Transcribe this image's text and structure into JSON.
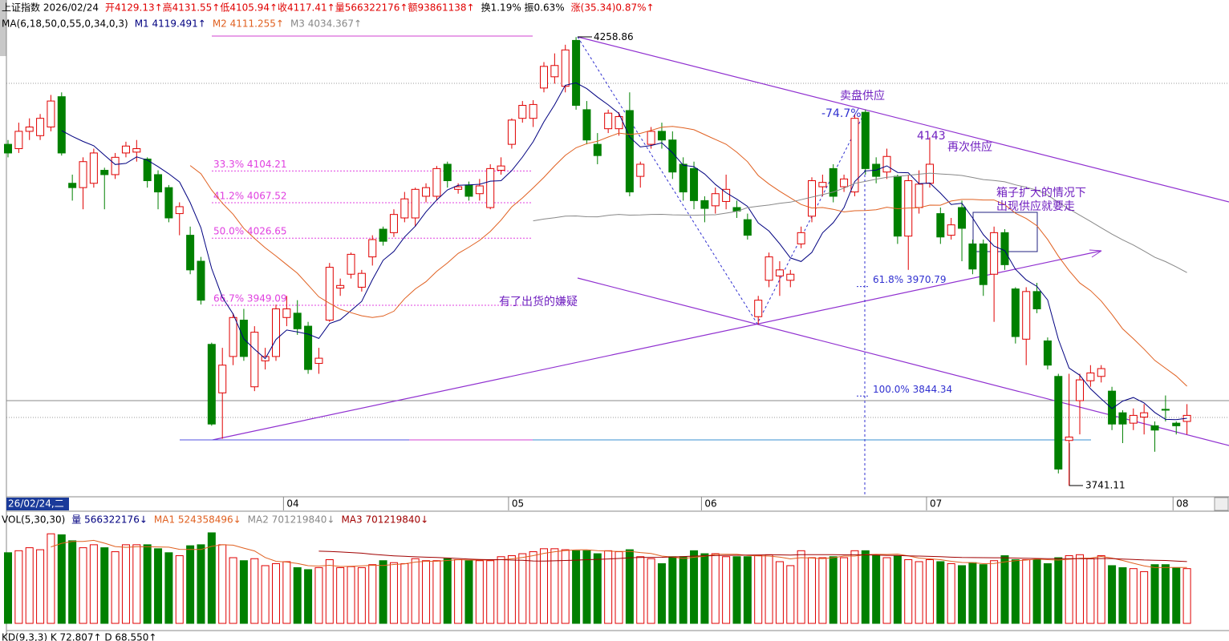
{
  "header": [
    {
      "text": "上证指数 2026/02/24",
      "color": "#000000"
    },
    {
      "text": "开4129.13↑高4131.55↑低4105.94↑收4117.41↑量566322176↑额93861138↑",
      "color": "#e00000"
    },
    {
      "text": "换1.19% 振0.63%",
      "color": "#000000"
    },
    {
      "text": "涨(35.34)0.87%↑",
      "color": "#e00000"
    }
  ],
  "indicator_row": [
    {
      "text": "MA(6,18,50,0,55,0,34,0,3)",
      "color": "#000000"
    },
    {
      "text": "M1 4119.491↑",
      "color": "#000080"
    },
    {
      "text": "M2 4111.255↑",
      "color": "#e06020"
    },
    {
      "text": "M3 4034.367↑",
      "color": "#888888"
    }
  ],
  "volume_row": [
    {
      "text": "VOL(5,30,30)",
      "color": "#000000"
    },
    {
      "text": "量 566322176↓",
      "color": "#000080"
    },
    {
      "text": "MA1 524358496↓",
      "color": "#e06020"
    },
    {
      "text": "MA2 701219840↓",
      "color": "#888888"
    },
    {
      "text": "MA3 701219840↓",
      "color": "#a00000"
    }
  ],
  "kd_row": "KD(9,3,3)  K 72.807↑  D 68.550↑",
  "date_box": "26/02/24,二",
  "chart_data": {
    "type": "candlestick",
    "ylim": [
      3728,
      4285
    ],
    "up_color": "#e00000",
    "down_color": "#008000",
    "ma_lines": [
      {
        "period": 6,
        "color": "#000080"
      },
      {
        "period": 18,
        "color": "#e06020"
      },
      {
        "period": 50,
        "color": "#888888"
      }
    ],
    "x_labels": [
      {
        "index": 26,
        "label": "04"
      },
      {
        "index": 47,
        "label": "05"
      },
      {
        "index": 65,
        "label": "06"
      },
      {
        "index": 86,
        "label": "07"
      },
      {
        "index": 109,
        "label": "08"
      }
    ],
    "candles": [
      [
        4135,
        4140,
        4120,
        4125
      ],
      [
        4130,
        4160,
        4125,
        4150
      ],
      [
        4150,
        4165,
        4140,
        4155
      ],
      [
        4145,
        4170,
        4140,
        4165
      ],
      [
        4155,
        4192,
        4150,
        4185
      ],
      [
        4190,
        4195,
        4122,
        4125
      ],
      [
        4090,
        4100,
        4070,
        4085
      ],
      [
        4085,
        4120,
        4060,
        4115
      ],
      [
        4090,
        4130,
        4085,
        4125
      ],
      [
        4105,
        4108,
        4060,
        4100
      ],
      [
        4100,
        4125,
        4095,
        4120
      ],
      [
        4125,
        4138,
        4120,
        4133
      ],
      [
        4126,
        4140,
        4115,
        4130
      ],
      [
        4118,
        4120,
        4085,
        4093
      ],
      [
        4100,
        4105,
        4060,
        4080
      ],
      [
        4085,
        4088,
        4045,
        4050
      ],
      [
        4055,
        4068,
        4030,
        4063
      ],
      [
        4030,
        4040,
        3985,
        3990
      ],
      [
        4000,
        4005,
        3950,
        3955
      ],
      [
        3904,
        3906,
        3810,
        3812
      ],
      [
        3848,
        3900,
        3795,
        3880
      ],
      [
        3890,
        3940,
        3880,
        3935
      ],
      [
        3932,
        3945,
        3885,
        3890
      ],
      [
        3855,
        3925,
        3850,
        3918
      ],
      [
        3885,
        3900,
        3875,
        3890
      ],
      [
        3890,
        3950,
        3885,
        3945
      ],
      [
        3935,
        3960,
        3925,
        3945
      ],
      [
        3940,
        3955,
        3915,
        3922
      ],
      [
        3925,
        3930,
        3870,
        3875
      ],
      [
        3882,
        3900,
        3870,
        3888
      ],
      [
        3932,
        3998,
        3930,
        3993
      ],
      [
        3969,
        3980,
        3960,
        3972
      ],
      [
        3985,
        4010,
        3980,
        4008
      ],
      [
        3970,
        3990,
        3965,
        3986
      ],
      [
        4005,
        4030,
        3995,
        4025
      ],
      [
        4037,
        4040,
        4018,
        4023
      ],
      [
        4033,
        4060,
        4028,
        4054
      ],
      [
        4050,
        4080,
        4045,
        4072
      ],
      [
        4050,
        4085,
        4040,
        4083
      ],
      [
        4075,
        4090,
        4068,
        4085
      ],
      [
        4075,
        4110,
        4070,
        4107
      ],
      [
        4112,
        4115,
        4085,
        4093
      ],
      [
        4083,
        4090,
        4078,
        4086
      ],
      [
        4088,
        4092,
        4070,
        4075
      ],
      [
        4078,
        4095,
        4070,
        4087
      ],
      [
        4062,
        4112,
        4060,
        4107
      ],
      [
        4105,
        4120,
        4100,
        4110
      ],
      [
        4135,
        4165,
        4130,
        4163
      ],
      [
        4165,
        4185,
        4160,
        4180
      ],
      [
        4165,
        4186,
        4155,
        4181
      ],
      [
        4200,
        4230,
        4195,
        4225
      ],
      [
        4213,
        4240,
        4205,
        4226
      ],
      [
        4202,
        4250,
        4195,
        4244
      ],
      [
        4255,
        4258.86,
        4175,
        4180
      ],
      [
        4175,
        4185,
        4135,
        4140
      ],
      [
        4135,
        4148,
        4112,
        4122
      ],
      [
        4153,
        4175,
        4148,
        4171
      ],
      [
        4153,
        4172,
        4145,
        4167
      ],
      [
        4174,
        4195,
        4075,
        4080
      ],
      [
        4098,
        4115,
        4085,
        4112
      ],
      [
        4135,
        4155,
        4130,
        4150
      ],
      [
        4150,
        4160,
        4130,
        4140
      ],
      [
        4140,
        4150,
        4095,
        4103
      ],
      [
        4112,
        4120,
        4070,
        4080
      ],
      [
        4107,
        4115,
        4060,
        4070
      ],
      [
        4070,
        4075,
        4045,
        4061
      ],
      [
        4064,
        4085,
        4055,
        4078
      ],
      [
        4069,
        4100,
        4060,
        4083
      ],
      [
        4062,
        4070,
        4050,
        4058
      ],
      [
        4048,
        4055,
        4025,
        4030
      ],
      [
        3936,
        3960,
        3927,
        3955
      ],
      [
        3978,
        4010,
        3970,
        4005
      ],
      [
        3983,
        4000,
        3960,
        3990
      ],
      [
        3978,
        3990,
        3970,
        3985
      ],
      [
        4020,
        4040,
        4015,
        4033
      ],
      [
        4052,
        4097,
        4045,
        4093
      ],
      [
        4086,
        4100,
        4075,
        4091
      ],
      [
        4107,
        4112,
        4068,
        4075
      ],
      [
        4086,
        4100,
        4080,
        4095
      ],
      [
        4080,
        4170,
        4075,
        4165
      ],
      [
        4172,
        4175,
        4100,
        4107
      ],
      [
        4112,
        4120,
        4090,
        4098
      ],
      [
        4103,
        4130,
        4095,
        4121
      ],
      [
        4098,
        4100,
        4020,
        4029
      ],
      [
        4029,
        4100,
        3990,
        4093
      ],
      [
        4062,
        4105,
        4055,
        4089
      ],
      [
        4090,
        4143,
        4085,
        4112
      ],
      [
        4055,
        4062,
        4020,
        4028
      ],
      [
        4030,
        4050,
        4025,
        4042
      ],
      [
        4062,
        4070,
        4000,
        4038
      ],
      [
        4020,
        4025,
        3985,
        3991
      ],
      [
        4020,
        4025,
        3960,
        3973
      ],
      [
        3985,
        4040,
        3930,
        4033
      ],
      [
        4033,
        4037,
        3990,
        3996
      ],
      [
        3968,
        3970,
        3905,
        3913
      ],
      [
        3910,
        3970,
        3880,
        3965
      ],
      [
        3965,
        3975,
        3940,
        3945
      ],
      [
        3908,
        3912,
        3875,
        3880
      ],
      [
        3867,
        3870,
        3755,
        3760
      ],
      [
        3793,
        3870,
        3741.11,
        3797
      ],
      [
        3839,
        3870,
        3800,
        3863
      ],
      [
        3862,
        3880,
        3855,
        3871
      ],
      [
        3867,
        3880,
        3860,
        3876
      ],
      [
        3850,
        3855,
        3805,
        3812
      ],
      [
        3825,
        3828,
        3790,
        3812
      ],
      [
        3813,
        3830,
        3805,
        3822
      ],
      [
        3820,
        3835,
        3800,
        3825
      ],
      [
        3810,
        3815,
        3780,
        3805
      ],
      [
        3829,
        3845,
        3815,
        3828
      ],
      [
        3813,
        3815,
        3800,
        3810
      ],
      [
        3815,
        3835,
        3800,
        3822
      ]
    ],
    "volume_ylim": [
      0,
      950000000
    ],
    "volume_ma": [
      {
        "period": 5,
        "color": "#e06020"
      },
      {
        "period": 30,
        "color": "#a00000"
      }
    ],
    "volumes": [
      710000000.0,
      730000000.0,
      760000000.0,
      740000000.0,
      900000000.0,
      890000000.0,
      830000000.0,
      760000000.0,
      790000000.0,
      760000000.0,
      720000000.0,
      790000000.0,
      790000000.0,
      790000000.0,
      750000000.0,
      710000000.0,
      680000000.0,
      780000000.0,
      790000000.0,
      910000000.0,
      790000000.0,
      660000000.0,
      630000000.0,
      650000000.0,
      580000000.0,
      600000000.0,
      620000000.0,
      560000000.0,
      540000000.0,
      560000000.0,
      640000000.0,
      560000000.0,
      570000000.0,
      560000000.0,
      590000000.0,
      630000000.0,
      610000000.0,
      600000000.0,
      650000000.0,
      630000000.0,
      630000000.0,
      650000000.0,
      640000000.0,
      630000000.0,
      630000000.0,
      630000000.0,
      670000000.0,
      680000000.0,
      700000000.0,
      720000000.0,
      750000000.0,
      750000000.0,
      740000000.0,
      730000000.0,
      730000000.0,
      700000000.0,
      730000000.0,
      720000000.0,
      740000000.0,
      670000000.0,
      650000000.0,
      600000000.0,
      670000000.0,
      670000000.0,
      730000000.0,
      700000000.0,
      700000000.0,
      670000000.0,
      670000000.0,
      670000000.0,
      680000000.0,
      690000000.0,
      620000000.0,
      580000000.0,
      730000000.0,
      660000000.0,
      660000000.0,
      670000000.0,
      660000000.0,
      730000000.0,
      730000000.0,
      680000000.0,
      660000000.0,
      680000000.0,
      640000000.0,
      620000000.0,
      640000000.0,
      620000000.0,
      600000000.0,
      580000000.0,
      610000000.0,
      590000000.0,
      630000000.0,
      680000000.0,
      640000000.0,
      640000000.0,
      640000000.0,
      600000000.0,
      660000000.0,
      680000000.0,
      690000000.0,
      650000000.0,
      680000000.0,
      580000000.0,
      560000000.0,
      550000000.0,
      520000000.0,
      590000000.0,
      590000000.0,
      560000000.0,
      550000000.0
    ],
    "fib_left": {
      "color": "#e040e0",
      "levels": [
        {
          "value": 4104.21,
          "label": "33.3% 4104.21"
        },
        {
          "value": 4067.52,
          "label": "41.2% 4067.52"
        },
        {
          "value": 4026.65,
          "label": "50.0% 4026.65"
        },
        {
          "value": 3949.09,
          "label": "66.7% 3949.09"
        }
      ]
    },
    "fib_right": {
      "color": "#3030d0",
      "levels": [
        {
          "value": 3970.79,
          "label": "61.8% 3970.79"
        },
        {
          "value": 3844.34,
          "label": "100.0% 3844.34"
        }
      ]
    },
    "high_mark": 4258.86,
    "low_mark": 3741.11,
    "annotations": [
      {
        "text": "卖盘供应",
        "color": "#7020c0"
      },
      {
        "text": "-74.7%",
        "color": "#3030d0"
      },
      {
        "text": "4143",
        "color": "#7020c0"
      },
      {
        "text": "再次供应",
        "color": "#7020c0"
      },
      {
        "text": "箱子扩大的情况下",
        "color": "#7020c0"
      },
      {
        "text": "出现供应就要走",
        "color": "#7020c0"
      },
      {
        "text": "有了出货的嫌疑",
        "color": "#7020c0"
      }
    ]
  }
}
